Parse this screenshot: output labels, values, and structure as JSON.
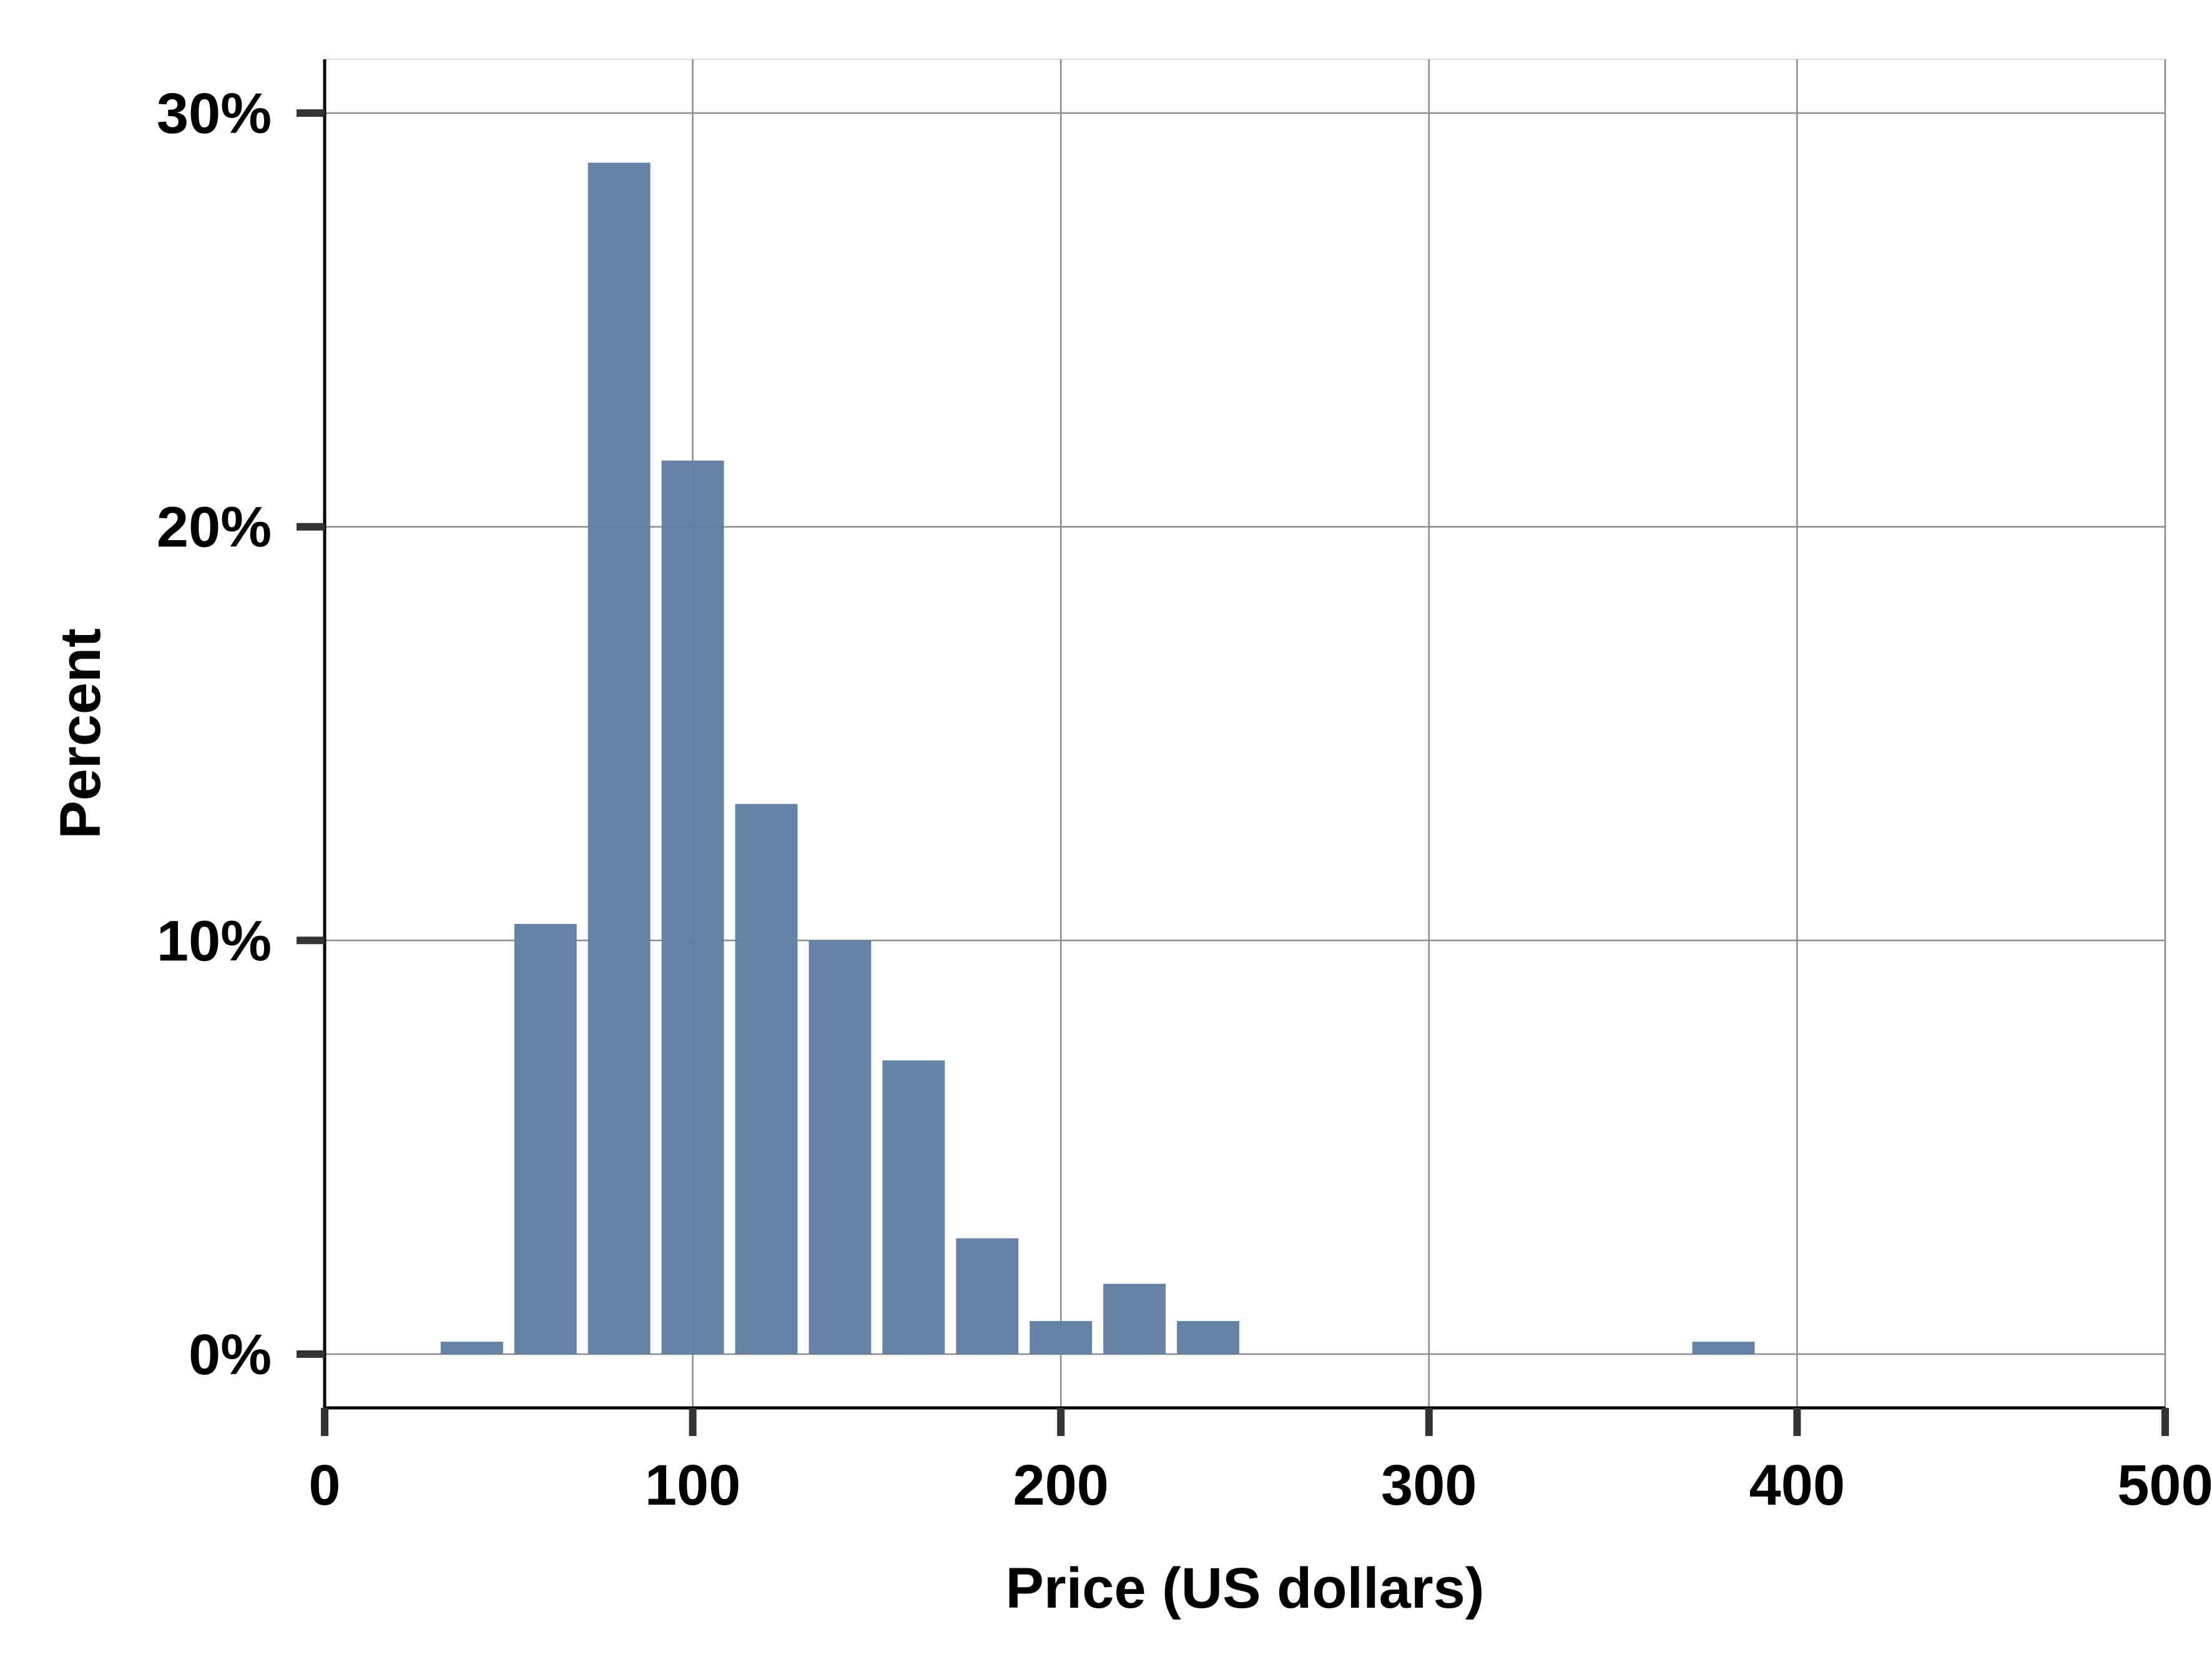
{
  "chart_data": {
    "type": "bar",
    "title": "",
    "xlabel": "Price (US dollars)",
    "ylabel": "Percent",
    "xlim": [
      0,
      500
    ],
    "ylim": [
      -1.3,
      31.3
    ],
    "x_ticks": [
      0,
      100,
      200,
      300,
      400,
      500
    ],
    "x_tick_labels": [
      "0",
      "100",
      "200",
      "300",
      "400",
      "500"
    ],
    "y_ticks": [
      0,
      10,
      20,
      30
    ],
    "y_tick_labels": [
      "0%",
      "10%",
      "20%",
      "30%"
    ],
    "grid": true,
    "legend": "none",
    "bin_width": 20,
    "series": [
      {
        "bins": [
          {
            "start": 30,
            "end": 50,
            "value": 0.3
          },
          {
            "start": 50,
            "end": 70,
            "value": 10.4
          },
          {
            "start": 70,
            "end": 90,
            "value": 28.8
          },
          {
            "start": 90,
            "end": 110,
            "value": 21.6
          },
          {
            "start": 110,
            "end": 130,
            "value": 13.3
          },
          {
            "start": 130,
            "end": 150,
            "value": 10.0
          },
          {
            "start": 150,
            "end": 170,
            "value": 7.1
          },
          {
            "start": 170,
            "end": 190,
            "value": 2.8
          },
          {
            "start": 190,
            "end": 210,
            "value": 0.8
          },
          {
            "start": 210,
            "end": 230,
            "value": 1.7
          },
          {
            "start": 230,
            "end": 250,
            "value": 0.8
          },
          {
            "start": 370,
            "end": 390,
            "value": 0.3
          }
        ]
      }
    ],
    "colors": {
      "bar": "#607ea2",
      "grid": "#8c8c8c",
      "axis": "#000000",
      "tick": "#333333"
    }
  }
}
